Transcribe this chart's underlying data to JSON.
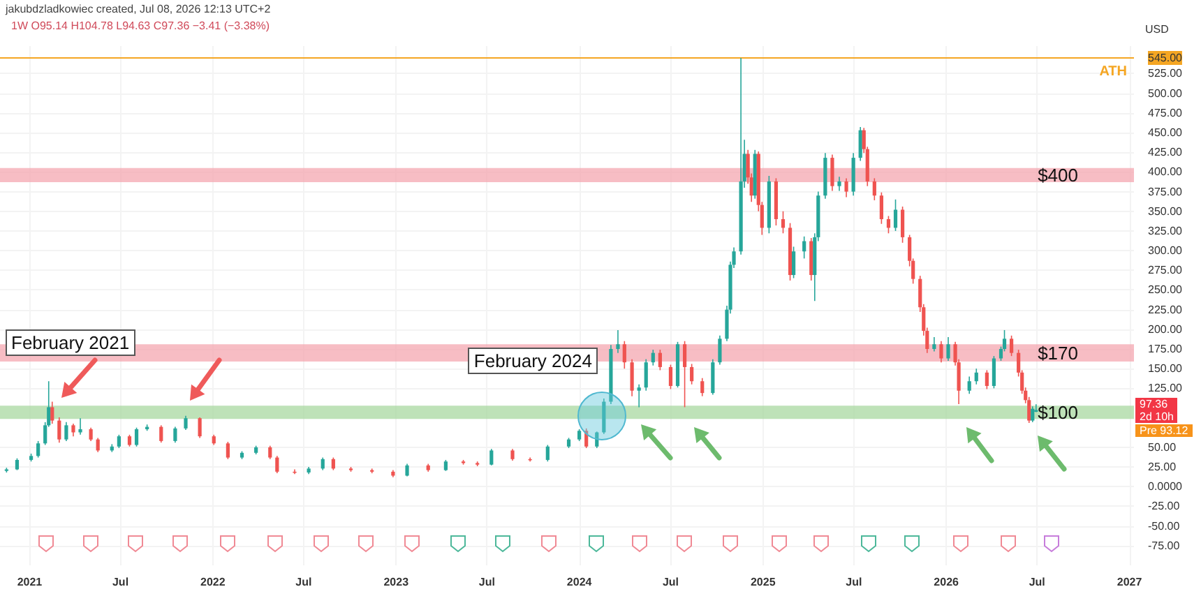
{
  "chart_data": {
    "type": "candlestick",
    "title": "1W O95.14 H104.78 L94.63 C97.36 −3.41 (−3.38%)",
    "ylabel": "USD",
    "x": [
      "2020-11-16",
      "2020-12-07",
      "2021-01-04",
      "2021-01-18",
      "2021-02-01",
      "2021-02-08",
      "2021-02-15",
      "2021-03-01",
      "2021-03-15",
      "2021-03-29",
      "2021-04-12",
      "2021-05-03",
      "2021-05-17",
      "2021-06-14",
      "2021-06-28",
      "2021-07-19",
      "2021-08-02",
      "2021-08-23",
      "2021-09-20",
      "2021-10-18",
      "2021-11-08",
      "2021-12-06",
      "2022-01-03",
      "2022-01-31",
      "2022-02-28",
      "2022-03-28",
      "2022-04-25",
      "2022-05-09",
      "2022-06-13",
      "2022-07-11",
      "2022-08-08",
      "2022-08-29",
      "2022-10-03",
      "2022-11-14",
      "2022-12-26",
      "2023-01-23",
      "2023-03-06",
      "2023-04-10",
      "2023-05-15",
      "2023-06-12",
      "2023-07-10",
      "2023-08-21",
      "2023-09-25",
      "2023-10-30",
      "2023-12-11",
      "2024-01-01",
      "2024-01-15",
      "2024-02-05",
      "2024-02-19",
      "2024-03-04",
      "2024-03-18",
      "2024-03-31",
      "2024-04-15",
      "2024-04-29",
      "2024-05-13",
      "2024-05-27",
      "2024-06-10",
      "2024-07-01",
      "2024-07-15",
      "2024-07-29",
      "2024-08-12",
      "2024-09-02",
      "2024-09-23",
      "2024-10-07",
      "2024-10-21",
      "2024-10-28",
      "2024-11-04",
      "2024-11-18",
      "2024-11-25",
      "2024-12-02",
      "2024-12-09",
      "2024-12-16",
      "2024-12-23",
      "2024-12-30",
      "2025-01-13",
      "2025-01-27",
      "2025-02-10",
      "2025-02-24",
      "2025-03-03",
      "2025-03-24",
      "2025-04-07",
      "2025-04-14",
      "2025-04-21",
      "2025-05-05",
      "2025-05-19",
      "2025-06-02",
      "2025-06-16",
      "2025-06-30",
      "2025-07-14",
      "2025-07-21",
      "2025-07-28",
      "2025-08-11",
      "2025-08-25",
      "2025-09-08",
      "2025-09-22",
      "2025-10-06",
      "2025-10-20",
      "2025-10-27",
      "2025-11-10",
      "2025-11-17",
      "2025-11-24",
      "2025-12-08",
      "2025-12-22",
      "2026-01-05",
      "2026-01-19",
      "2026-01-26",
      "2026-02-16",
      "2026-03-02",
      "2026-03-23",
      "2026-04-06",
      "2026-04-20",
      "2026-04-27",
      "2026-05-11",
      "2026-05-25",
      "2026-06-01",
      "2026-06-08",
      "2026-06-15",
      "2026-06-22",
      "2026-06-29"
    ],
    "ohlc": [
      [
        20,
        24,
        18,
        22
      ],
      [
        22,
        36,
        21,
        34
      ],
      [
        34,
        42,
        32,
        39
      ],
      [
        39,
        58,
        37,
        55
      ],
      [
        55,
        82,
        53,
        78
      ],
      [
        78,
        134,
        76,
        101
      ],
      [
        101,
        108,
        80,
        84
      ],
      [
        84,
        88,
        56,
        60
      ],
      [
        60,
        82,
        58,
        78
      ],
      [
        78,
        80,
        64,
        69
      ],
      [
        69,
        87,
        66,
        73
      ],
      [
        73,
        75,
        58,
        60
      ],
      [
        60,
        62,
        44,
        46
      ],
      [
        46,
        54,
        44,
        51
      ],
      [
        51,
        66,
        49,
        64
      ],
      [
        64,
        66,
        51,
        53
      ],
      [
        53,
        75,
        51,
        73
      ],
      [
        73,
        79,
        71,
        76
      ],
      [
        76,
        78,
        56,
        58
      ],
      [
        58,
        76,
        56,
        74
      ],
      [
        74,
        90,
        72,
        87
      ],
      [
        87,
        88,
        62,
        64
      ],
      [
        64,
        66,
        53,
        55
      ],
      [
        55,
        57,
        35,
        37
      ],
      [
        37,
        45,
        35,
        43
      ],
      [
        43,
        52,
        41,
        50
      ],
      [
        50,
        52,
        35,
        37
      ],
      [
        37,
        39,
        17,
        19
      ],
      [
        19,
        22,
        16,
        18
      ],
      [
        18,
        25,
        16,
        23
      ],
      [
        23,
        37,
        21,
        35
      ],
      [
        35,
        37,
        21,
        23
      ],
      [
        23,
        25,
        19,
        21
      ],
      [
        21,
        23,
        17,
        19
      ],
      [
        19,
        21,
        12,
        14
      ],
      [
        14,
        29,
        13,
        27
      ],
      [
        27,
        29,
        19,
        21
      ],
      [
        21,
        34,
        20,
        32
      ],
      [
        32,
        34,
        28,
        30
      ],
      [
        30,
        32,
        26,
        28
      ],
      [
        28,
        48,
        27,
        46
      ],
      [
        46,
        48,
        33,
        35
      ],
      [
        35,
        37,
        32,
        34
      ],
      [
        34,
        53,
        32,
        51
      ],
      [
        51,
        62,
        49,
        60
      ],
      [
        60,
        73,
        58,
        71
      ],
      [
        71,
        74,
        49,
        51
      ],
      [
        51,
        70,
        49,
        69
      ],
      [
        69,
        112,
        67,
        108
      ],
      [
        108,
        180,
        105,
        175
      ],
      [
        175,
        199,
        170,
        181
      ],
      [
        181,
        185,
        150,
        158
      ],
      [
        158,
        162,
        115,
        122
      ],
      [
        122,
        130,
        101,
        126
      ],
      [
        126,
        162,
        122,
        158
      ],
      [
        158,
        174,
        154,
        170
      ],
      [
        170,
        174,
        148,
        152
      ],
      [
        152,
        155,
        124,
        128
      ],
      [
        128,
        184,
        126,
        181
      ],
      [
        181,
        185,
        101,
        152
      ],
      [
        152,
        156,
        130,
        134
      ],
      [
        134,
        138,
        115,
        119
      ],
      [
        119,
        162,
        117,
        158
      ],
      [
        158,
        192,
        155,
        188
      ],
      [
        188,
        230,
        185,
        225
      ],
      [
        225,
        286,
        220,
        282
      ],
      [
        282,
        304,
        278,
        299
      ],
      [
        299,
        545,
        295,
        388
      ],
      [
        388,
        441,
        380,
        423
      ],
      [
        423,
        428,
        385,
        393
      ],
      [
        393,
        398,
        362,
        370
      ],
      [
        370,
        428,
        366,
        423
      ],
      [
        423,
        426,
        350,
        358
      ],
      [
        358,
        362,
        320,
        329
      ],
      [
        329,
        395,
        322,
        388
      ],
      [
        388,
        392,
        332,
        340
      ],
      [
        340,
        350,
        322,
        329
      ],
      [
        329,
        335,
        262,
        269
      ],
      [
        269,
        305,
        265,
        299
      ],
      [
        299,
        318,
        290,
        312
      ],
      [
        312,
        316,
        262,
        269
      ],
      [
        269,
        322,
        236,
        317
      ],
      [
        317,
        375,
        312,
        370
      ],
      [
        370,
        424,
        366,
        418
      ],
      [
        418,
        422,
        376,
        382
      ],
      [
        382,
        394,
        376,
        388
      ],
      [
        388,
        392,
        368,
        375
      ],
      [
        375,
        424,
        370,
        418
      ],
      [
        418,
        457,
        414,
        453
      ],
      [
        453,
        456,
        424,
        429
      ],
      [
        429,
        432,
        382,
        388
      ],
      [
        388,
        392,
        364,
        370
      ],
      [
        370,
        374,
        334,
        340
      ],
      [
        340,
        344,
        322,
        329
      ],
      [
        329,
        365,
        325,
        352
      ],
      [
        352,
        356,
        310,
        317
      ],
      [
        317,
        320,
        280,
        287
      ],
      [
        287,
        290,
        258,
        264
      ],
      [
        264,
        268,
        222,
        228
      ],
      [
        228,
        232,
        192,
        198
      ],
      [
        198,
        202,
        170,
        175
      ],
      [
        175,
        190,
        172,
        181
      ],
      [
        181,
        185,
        158,
        163
      ],
      [
        163,
        190,
        160,
        181
      ],
      [
        181,
        184,
        154,
        158
      ],
      [
        158,
        162,
        105,
        122
      ],
      [
        122,
        140,
        118,
        134
      ],
      [
        134,
        150,
        130,
        145
      ],
      [
        145,
        148,
        124,
        128
      ],
      [
        128,
        166,
        125,
        163
      ],
      [
        163,
        178,
        160,
        175
      ],
      [
        175,
        199,
        172,
        188
      ],
      [
        188,
        192,
        166,
        170
      ],
      [
        170,
        174,
        140,
        145
      ],
      [
        145,
        148,
        118,
        122
      ],
      [
        122,
        126,
        106,
        110
      ],
      [
        110,
        114,
        81,
        84
      ],
      [
        84,
        102,
        82,
        99
      ],
      [
        95.14,
        104.78,
        94.63,
        97.36
      ]
    ],
    "xlim": [
      "2020-11-03",
      "2027-01-10"
    ],
    "xticks": [
      {
        "value": "2021",
        "label": "2021"
      },
      {
        "value": "2021-07",
        "label": "Jul"
      },
      {
        "value": "2022",
        "label": "2022"
      },
      {
        "value": "2022-07",
        "label": "Jul"
      },
      {
        "value": "2023",
        "label": "2023"
      },
      {
        "value": "2023-07",
        "label": "Jul"
      },
      {
        "value": "2024",
        "label": "2024"
      },
      {
        "value": "2024-07",
        "label": "Jul"
      },
      {
        "value": "2025",
        "label": "2025"
      },
      {
        "value": "2025-07",
        "label": "Jul"
      },
      {
        "value": "2026",
        "label": "2026"
      },
      {
        "value": "2026-07",
        "label": "Jul"
      },
      {
        "value": "2027",
        "label": "2027"
      }
    ],
    "ylim": [
      -100,
      560
    ],
    "yticks": [
      {
        "value": -75,
        "label": "-75.00"
      },
      {
        "value": -50,
        "label": "-50.00"
      },
      {
        "value": -25,
        "label": "-25.00"
      },
      {
        "value": 0,
        "label": "0.0000"
      },
      {
        "value": 25,
        "label": "25.00"
      },
      {
        "value": 50,
        "label": "50.00"
      },
      {
        "value": 125,
        "label": "125.00"
      },
      {
        "value": 150,
        "label": "150.00"
      },
      {
        "value": 175,
        "label": "175.00"
      },
      {
        "value": 200,
        "label": "200.00"
      },
      {
        "value": 225,
        "label": "225.00"
      },
      {
        "value": 250,
        "label": "250.00"
      },
      {
        "value": 275,
        "label": "275.00"
      },
      {
        "value": 300,
        "label": "300.00"
      },
      {
        "value": 325,
        "label": "325.00"
      },
      {
        "value": 350,
        "label": "350.00"
      },
      {
        "value": 375,
        "label": "375.00"
      },
      {
        "value": 400,
        "label": "400.00"
      },
      {
        "value": 425,
        "label": "425.00"
      },
      {
        "value": 450,
        "label": "450.00"
      },
      {
        "value": 475,
        "label": "475.00"
      },
      {
        "value": 500,
        "label": "500.00"
      },
      {
        "value": 525,
        "label": "525.00"
      },
      {
        "value": 545,
        "label": "545.00"
      }
    ],
    "grid": true,
    "bands": [
      {
        "axis": "y",
        "from": 387,
        "to": 405,
        "label": "$400",
        "color": "#f4a7b0"
      },
      {
        "axis": "y",
        "from": 159,
        "to": 181,
        "label": "$170",
        "color": "#f4a7b0"
      },
      {
        "axis": "y",
        "from": 86,
        "to": 103,
        "label": "$100",
        "color": "#a8d8a0"
      }
    ],
    "ref_lines": [
      {
        "axis": "y",
        "value": 545,
        "label": "ATH",
        "color": "#f5a623",
        "line_style": "solid"
      }
    ],
    "annotations": [
      "jakubdzladkowiec created, Jul 08, 2026 12:13 UTC+2",
      {
        "text": "February 2021",
        "x": "2021-02-08",
        "y": 134
      },
      {
        "text": "February 2024",
        "x": "2024-02-19",
        "y": 112
      },
      {
        "text": "97.36\n2d 10h",
        "y": 97.36
      },
      "Pre 93.12"
    ]
  }
}
